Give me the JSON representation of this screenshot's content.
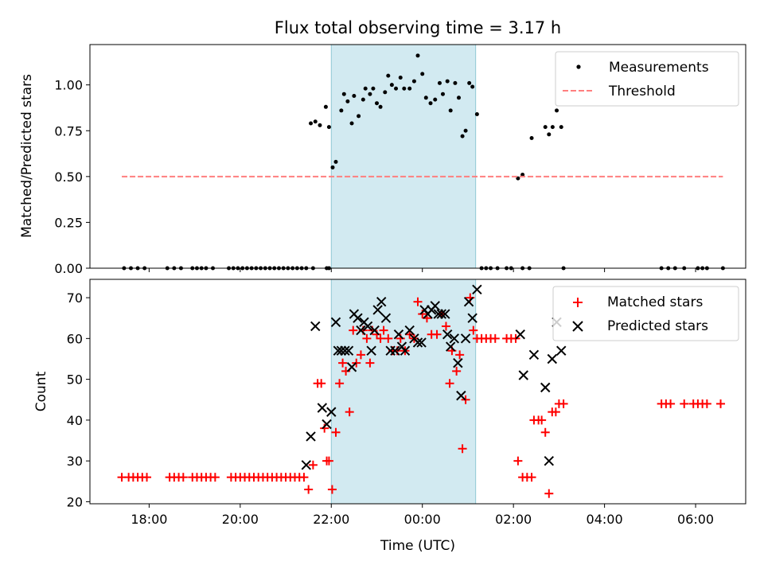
{
  "chart_data": [
    {
      "type": "scatter",
      "panel": "top",
      "title": "Flux total observing time = 3.17 h",
      "xlabel": "",
      "ylabel": "Matched/Predicted stars",
      "xlim_hours": [
        16.7,
        31.1
      ],
      "ylim": [
        0,
        1.22
      ],
      "yticks": [
        "0.00",
        "0.25",
        "0.50",
        "0.75",
        "1.00"
      ],
      "ytick_values": [
        0,
        0.25,
        0.5,
        0.75,
        1.0
      ],
      "shaded_interval_hours": [
        22.0,
        25.17
      ],
      "shade_color": "#add8e6",
      "legend_position": "upper-right",
      "series": [
        {
          "name": "Measurements",
          "color": "#000000",
          "marker": "dot",
          "points": [
            [
              17.45,
              0
            ],
            [
              17.6,
              0
            ],
            [
              17.75,
              0
            ],
            [
              17.9,
              0
            ],
            [
              18.4,
              0
            ],
            [
              18.55,
              0
            ],
            [
              18.7,
              0
            ],
            [
              18.95,
              0
            ],
            [
              19.05,
              0
            ],
            [
              19.15,
              0
            ],
            [
              19.25,
              0
            ],
            [
              19.4,
              0
            ],
            [
              19.75,
              0
            ],
            [
              19.85,
              0
            ],
            [
              19.95,
              0
            ],
            [
              20.05,
              0
            ],
            [
              20.15,
              0
            ],
            [
              20.25,
              0
            ],
            [
              20.35,
              0
            ],
            [
              20.45,
              0
            ],
            [
              20.55,
              0
            ],
            [
              20.65,
              0
            ],
            [
              20.75,
              0
            ],
            [
              20.85,
              0
            ],
            [
              20.95,
              0
            ],
            [
              21.05,
              0
            ],
            [
              21.15,
              0
            ],
            [
              21.25,
              0
            ],
            [
              21.35,
              0
            ],
            [
              21.45,
              0
            ],
            [
              21.6,
              0
            ],
            [
              21.9,
              0
            ],
            [
              21.95,
              0
            ],
            [
              25.3,
              0
            ],
            [
              25.4,
              0
            ],
            [
              25.5,
              0
            ],
            [
              25.65,
              0
            ],
            [
              25.85,
              0
            ],
            [
              25.95,
              0
            ],
            [
              26.2,
              0
            ],
            [
              26.35,
              0
            ],
            [
              27.1,
              0
            ],
            [
              29.25,
              0
            ],
            [
              29.4,
              0
            ],
            [
              29.55,
              0
            ],
            [
              29.75,
              0
            ],
            [
              30.05,
              0
            ],
            [
              30.15,
              0
            ],
            [
              30.25,
              0
            ],
            [
              30.6,
              0
            ],
            [
              21.55,
              0.79
            ],
            [
              21.65,
              0.8
            ],
            [
              21.75,
              0.78
            ],
            [
              21.88,
              0.88
            ],
            [
              21.95,
              0.77
            ],
            [
              22.03,
              0.55
            ],
            [
              22.1,
              0.58
            ],
            [
              22.22,
              0.86
            ],
            [
              22.28,
              0.95
            ],
            [
              22.36,
              0.91
            ],
            [
              22.45,
              0.79
            ],
            [
              22.5,
              0.94
            ],
            [
              22.6,
              0.83
            ],
            [
              22.7,
              0.92
            ],
            [
              22.75,
              0.98
            ],
            [
              22.85,
              0.95
            ],
            [
              22.92,
              0.98
            ],
            [
              23.0,
              0.9
            ],
            [
              23.08,
              0.88
            ],
            [
              23.18,
              0.96
            ],
            [
              23.25,
              1.05
            ],
            [
              23.33,
              1.0
            ],
            [
              23.42,
              0.98
            ],
            [
              23.52,
              1.04
            ],
            [
              23.6,
              0.98
            ],
            [
              23.72,
              0.98
            ],
            [
              23.82,
              1.02
            ],
            [
              23.9,
              1.16
            ],
            [
              24.0,
              1.06
            ],
            [
              24.08,
              0.93
            ],
            [
              24.18,
              0.9
            ],
            [
              24.28,
              0.92
            ],
            [
              24.38,
              1.01
            ],
            [
              24.45,
              0.95
            ],
            [
              24.55,
              1.02
            ],
            [
              24.62,
              0.86
            ],
            [
              24.72,
              1.01
            ],
            [
              24.8,
              0.93
            ],
            [
              24.88,
              0.72
            ],
            [
              24.95,
              0.75
            ],
            [
              25.03,
              1.01
            ],
            [
              25.1,
              0.99
            ],
            [
              25.2,
              0.84
            ],
            [
              26.1,
              0.49
            ],
            [
              26.2,
              0.51
            ],
            [
              26.4,
              0.71
            ],
            [
              26.7,
              0.77
            ],
            [
              26.78,
              0.73
            ],
            [
              26.86,
              0.77
            ],
            [
              26.95,
              0.86
            ],
            [
              27.05,
              0.77
            ]
          ]
        },
        {
          "name": "Threshold",
          "color": "#ff7f7f",
          "style": "dashed",
          "points": [
            [
              17.4,
              0.5
            ],
            [
              30.6,
              0.5
            ]
          ]
        }
      ]
    },
    {
      "type": "scatter",
      "panel": "bottom",
      "title": "",
      "xlabel": "Time (UTC)",
      "ylabel": "Count",
      "xlim_hours": [
        16.7,
        31.1
      ],
      "ylim": [
        19.5,
        74.5
      ],
      "yticks": [
        "20",
        "30",
        "40",
        "50",
        "60",
        "70"
      ],
      "ytick_values": [
        20,
        30,
        40,
        50,
        60,
        70
      ],
      "xticks": [
        "18:00",
        "20:00",
        "22:00",
        "00:00",
        "02:00",
        "04:00",
        "06:00"
      ],
      "xtick_values": [
        18,
        20,
        22,
        24,
        26,
        28,
        30
      ],
      "shaded_interval_hours": [
        22.0,
        25.17
      ],
      "shade_color": "#add8e6",
      "legend_position": "upper-right",
      "series": [
        {
          "name": "Matched stars",
          "color": "#ff0000",
          "marker": "plus",
          "points": [
            [
              17.4,
              26
            ],
            [
              17.55,
              26
            ],
            [
              17.65,
              26
            ],
            [
              17.75,
              26
            ],
            [
              17.85,
              26
            ],
            [
              17.95,
              26
            ],
            [
              18.45,
              26
            ],
            [
              18.55,
              26
            ],
            [
              18.65,
              26
            ],
            [
              18.75,
              26
            ],
            [
              18.95,
              26
            ],
            [
              19.05,
              26
            ],
            [
              19.15,
              26
            ],
            [
              19.25,
              26
            ],
            [
              19.35,
              26
            ],
            [
              19.45,
              26
            ],
            [
              19.8,
              26
            ],
            [
              19.9,
              26
            ],
            [
              20.0,
              26
            ],
            [
              20.1,
              26
            ],
            [
              20.2,
              26
            ],
            [
              20.3,
              26
            ],
            [
              20.4,
              26
            ],
            [
              20.5,
              26
            ],
            [
              20.6,
              26
            ],
            [
              20.7,
              26
            ],
            [
              20.8,
              26
            ],
            [
              20.9,
              26
            ],
            [
              21.0,
              26
            ],
            [
              21.1,
              26
            ],
            [
              21.2,
              26
            ],
            [
              21.3,
              26
            ],
            [
              21.4,
              26
            ],
            [
              21.5,
              23
            ],
            [
              21.6,
              29
            ],
            [
              21.7,
              49
            ],
            [
              21.78,
              49
            ],
            [
              21.85,
              38
            ],
            [
              21.9,
              30
            ],
            [
              21.95,
              30
            ],
            [
              22.02,
              23
            ],
            [
              22.1,
              37
            ],
            [
              22.18,
              49
            ],
            [
              22.25,
              54
            ],
            [
              22.32,
              52
            ],
            [
              22.4,
              42
            ],
            [
              22.48,
              62
            ],
            [
              22.55,
              54
            ],
            [
              22.65,
              56
            ],
            [
              22.7,
              62
            ],
            [
              22.78,
              60
            ],
            [
              22.85,
              54
            ],
            [
              22.9,
              62
            ],
            [
              23.0,
              61
            ],
            [
              23.08,
              60
            ],
            [
              23.15,
              62
            ],
            [
              23.25,
              60
            ],
            [
              23.35,
              57
            ],
            [
              23.45,
              57
            ],
            [
              23.52,
              60
            ],
            [
              23.62,
              57
            ],
            [
              23.72,
              61
            ],
            [
              23.82,
              60
            ],
            [
              23.9,
              69
            ],
            [
              24.0,
              66
            ],
            [
              24.1,
              65
            ],
            [
              24.2,
              61
            ],
            [
              24.32,
              61
            ],
            [
              24.42,
              66
            ],
            [
              24.52,
              63
            ],
            [
              24.6,
              49
            ],
            [
              24.65,
              57
            ],
            [
              24.75,
              52
            ],
            [
              24.82,
              56
            ],
            [
              24.88,
              33
            ],
            [
              24.95,
              45
            ],
            [
              25.05,
              70
            ],
            [
              25.12,
              62
            ],
            [
              25.2,
              60
            ],
            [
              25.3,
              60
            ],
            [
              25.4,
              60
            ],
            [
              25.5,
              60
            ],
            [
              25.6,
              60
            ],
            [
              25.85,
              60
            ],
            [
              25.95,
              60
            ],
            [
              26.05,
              60
            ],
            [
              26.1,
              30
            ],
            [
              26.2,
              26
            ],
            [
              26.3,
              26
            ],
            [
              26.4,
              26
            ],
            [
              26.45,
              40
            ],
            [
              26.55,
              40
            ],
            [
              26.62,
              40
            ],
            [
              26.7,
              37
            ],
            [
              26.78,
              22
            ],
            [
              26.85,
              42
            ],
            [
              26.93,
              42
            ],
            [
              27.0,
              44
            ],
            [
              27.1,
              44
            ],
            [
              29.25,
              44
            ],
            [
              29.35,
              44
            ],
            [
              29.45,
              44
            ],
            [
              29.75,
              44
            ],
            [
              29.95,
              44
            ],
            [
              30.05,
              44
            ],
            [
              30.15,
              44
            ],
            [
              30.25,
              44
            ],
            [
              30.55,
              44
            ]
          ]
        },
        {
          "name": "Predicted stars",
          "color": "#000000",
          "marker": "x",
          "points": [
            [
              21.45,
              29
            ],
            [
              21.55,
              36
            ],
            [
              21.65,
              63
            ],
            [
              21.8,
              43
            ],
            [
              21.9,
              39
            ],
            [
              22.0,
              42
            ],
            [
              22.1,
              64
            ],
            [
              22.15,
              57
            ],
            [
              22.22,
              57
            ],
            [
              22.3,
              57
            ],
            [
              22.38,
              57
            ],
            [
              22.45,
              53
            ],
            [
              22.5,
              66
            ],
            [
              22.58,
              65
            ],
            [
              22.65,
              62
            ],
            [
              22.72,
              64
            ],
            [
              22.8,
              63
            ],
            [
              22.88,
              57
            ],
            [
              22.95,
              62
            ],
            [
              23.02,
              67
            ],
            [
              23.1,
              69
            ],
            [
              23.2,
              65
            ],
            [
              23.3,
              57
            ],
            [
              23.4,
              57
            ],
            [
              23.48,
              61
            ],
            [
              23.55,
              58
            ],
            [
              23.62,
              57
            ],
            [
              23.72,
              62
            ],
            [
              23.82,
              60
            ],
            [
              23.9,
              59
            ],
            [
              23.98,
              59
            ],
            [
              24.05,
              67
            ],
            [
              24.12,
              66
            ],
            [
              24.2,
              67
            ],
            [
              24.28,
              68
            ],
            [
              24.35,
              66
            ],
            [
              24.42,
              66
            ],
            [
              24.5,
              66
            ],
            [
              24.55,
              61
            ],
            [
              24.62,
              58
            ],
            [
              24.7,
              60
            ],
            [
              24.78,
              54
            ],
            [
              24.85,
              46
            ],
            [
              24.95,
              60
            ],
            [
              25.02,
              69
            ],
            [
              25.1,
              65
            ],
            [
              25.2,
              72
            ],
            [
              26.15,
              61
            ],
            [
              26.22,
              51
            ],
            [
              26.45,
              56
            ],
            [
              26.7,
              48
            ],
            [
              26.78,
              30
            ],
            [
              26.85,
              55
            ],
            [
              26.95,
              64
            ],
            [
              27.05,
              57
            ]
          ]
        }
      ]
    }
  ]
}
